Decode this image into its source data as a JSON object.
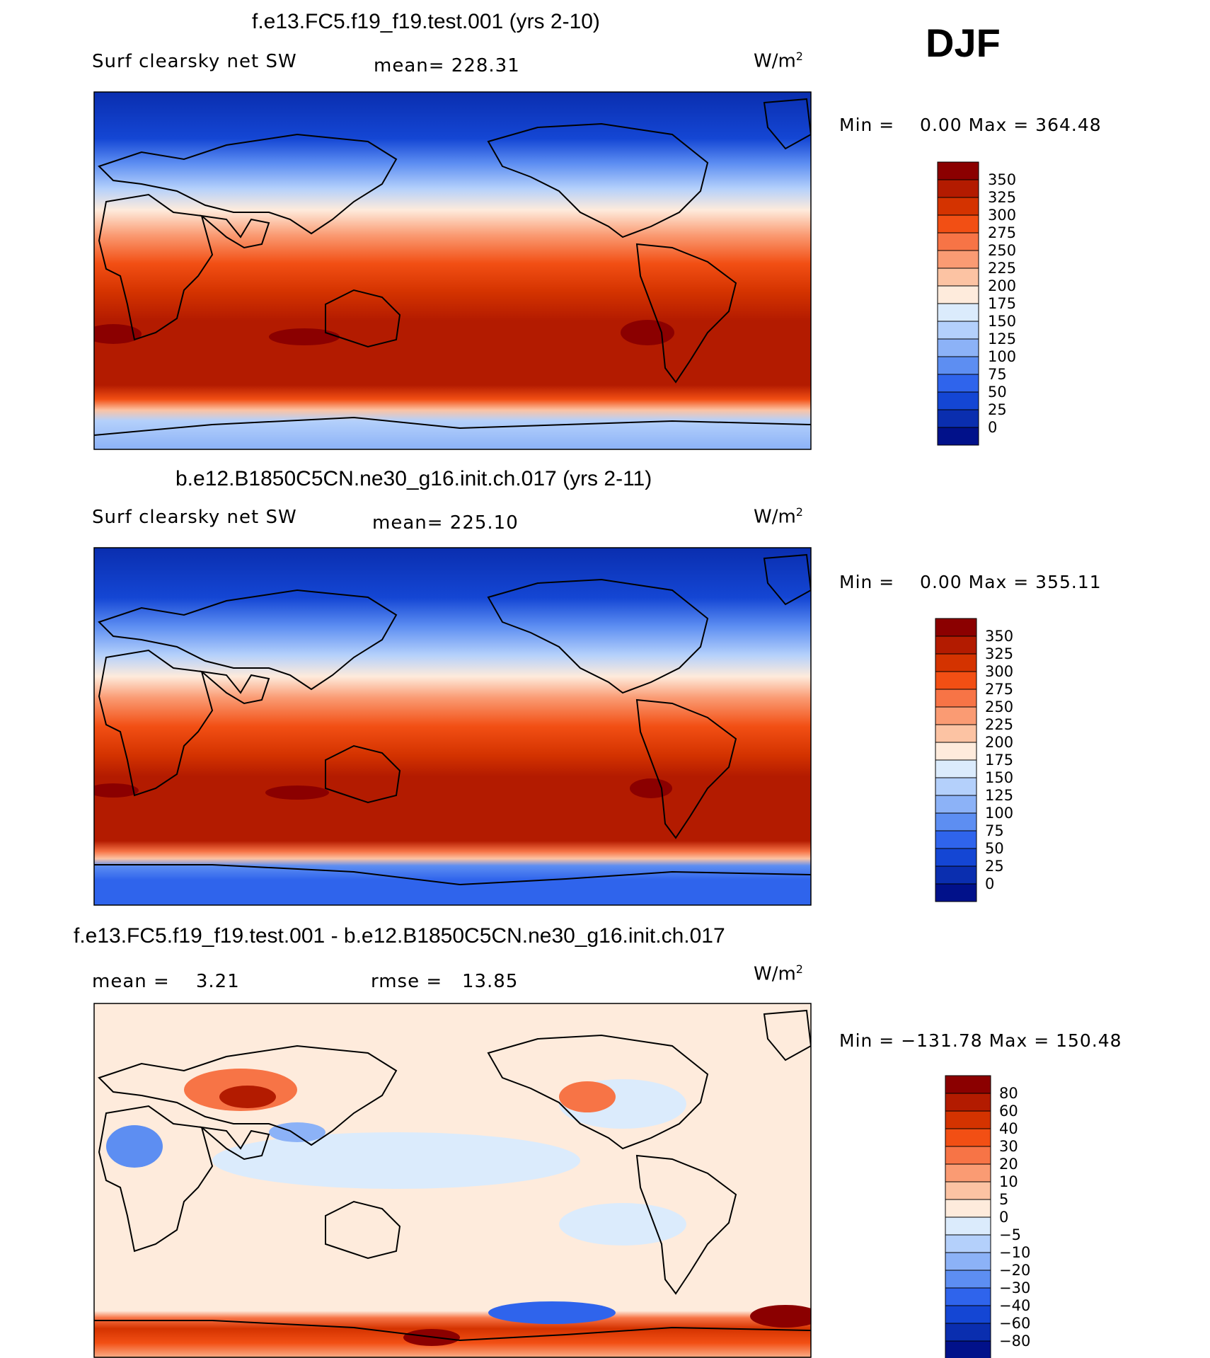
{
  "season": "DJF",
  "panels": [
    {
      "title": "f.e13.FC5.f19_f19.test.001 (yrs 2-10)",
      "variable": "Surf clearsky net SW",
      "stat": "mean= 228.31",
      "units": "W/m",
      "units_sup": "2",
      "minmax": "Min =    0.00 Max = 364.48",
      "colorbar_labels": [
        "350",
        "325",
        "300",
        "275",
        "250",
        "225",
        "200",
        "175",
        "150",
        "125",
        "100",
        "75",
        "50",
        "25",
        "0"
      ]
    },
    {
      "title": "b.e12.B1850C5CN.ne30_g16.init.ch.017 (yrs 2-11)",
      "variable": "Surf clearsky net SW",
      "stat": "mean= 225.10",
      "units": "W/m",
      "units_sup": "2",
      "minmax": "Min =    0.00 Max = 355.11",
      "colorbar_labels": [
        "350",
        "325",
        "300",
        "275",
        "250",
        "225",
        "200",
        "175",
        "150",
        "125",
        "100",
        "75",
        "50",
        "25",
        "0"
      ]
    },
    {
      "title": "f.e13.FC5.f19_f19.test.001 - b.e12.B1850C5CN.ne30_g16.init.ch.017",
      "stat_left": "mean =    3.21",
      "stat_right": "rmse =   13.85",
      "units": "W/m",
      "units_sup": "2",
      "minmax": "Min = −131.78 Max = 150.48",
      "colorbar_labels": [
        "80",
        "60",
        "40",
        "30",
        "20",
        "10",
        "5",
        "0",
        "−5",
        "−10",
        "−20",
        "−30",
        "−40",
        "−60",
        "−80"
      ]
    }
  ],
  "colors": {
    "abs_scale": [
      "#8b0000",
      "#b31b00",
      "#d43300",
      "#f24f14",
      "#f77446",
      "#fa9b73",
      "#fcc3a3",
      "#feebdc",
      "#dbebfc",
      "#b4d0fb",
      "#8cb2f7",
      "#5d8ef2",
      "#2f64ec",
      "#1446d4",
      "#0a2eaf",
      "#01118a"
    ],
    "diff_scale": [
      "#8b0000",
      "#b31b00",
      "#d43300",
      "#f24f14",
      "#f77446",
      "#fa9b73",
      "#fcc3a3",
      "#feebdc",
      "#dbebfc",
      "#b4d0fb",
      "#8cb2f7",
      "#5d8ef2",
      "#2f64ec",
      "#1446d4",
      "#0a2eaf",
      "#01118a"
    ]
  }
}
